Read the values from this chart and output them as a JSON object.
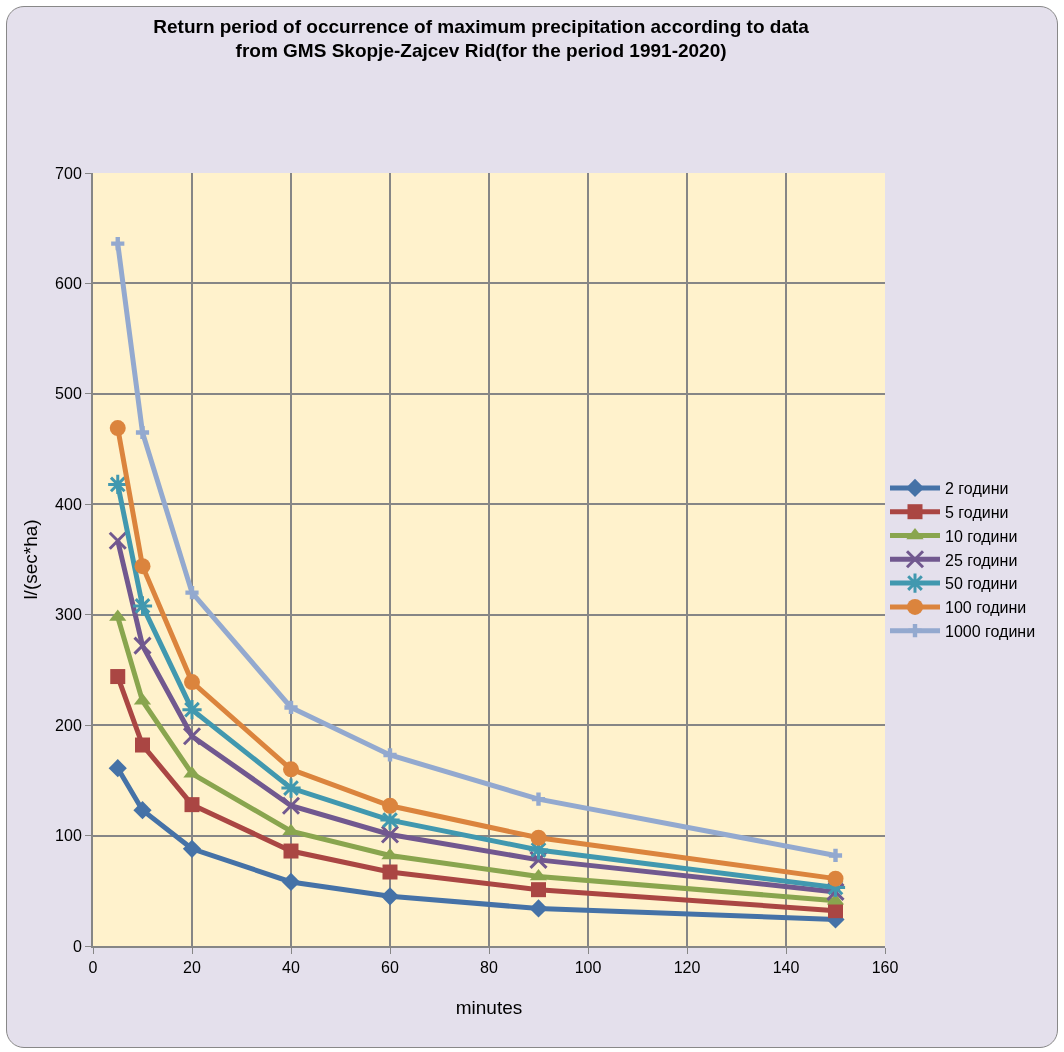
{
  "chart_data": {
    "type": "line",
    "title": "Return period of occurrence of maximum precipitation according to data\nfrom GMS Skopje-Zajcev Rid(for the period 1991-2020)",
    "xlabel": "minutes",
    "ylabel": "l/(sec*ha)",
    "x": [
      5,
      10,
      20,
      40,
      60,
      90,
      150
    ],
    "xlim": [
      0,
      160
    ],
    "xticks": [
      0,
      20,
      40,
      60,
      80,
      100,
      120,
      140,
      160
    ],
    "ylim": [
      0,
      700
    ],
    "yticks": [
      0,
      100,
      200,
      300,
      400,
      500,
      600,
      700
    ],
    "grid": true,
    "legend": "right",
    "line_style": "solid",
    "series": [
      {
        "name": "2 години",
        "color": "#4572a7",
        "marker": "diamond",
        "values": [
          161,
          123,
          88,
          58,
          45,
          34,
          24
        ]
      },
      {
        "name": "5 години",
        "color": "#aa4643",
        "marker": "square",
        "values": [
          244,
          182,
          128,
          86,
          67,
          51,
          32
        ]
      },
      {
        "name": "10 години",
        "color": "#89a54e",
        "marker": "triangle",
        "values": [
          298,
          222,
          156,
          104,
          82,
          63,
          41
        ]
      },
      {
        "name": "25 години",
        "color": "#71588f",
        "marker": "x",
        "values": [
          367,
          272,
          190,
          127,
          101,
          78,
          49
        ]
      },
      {
        "name": "50 години",
        "color": "#4198af",
        "marker": "cross",
        "values": [
          418,
          308,
          214,
          143,
          114,
          87,
          53
        ]
      },
      {
        "name": "100 години",
        "color": "#db843d",
        "marker": "circle",
        "values": [
          469,
          344,
          239,
          160,
          127,
          98,
          61
        ]
      },
      {
        "name": "1000 години",
        "color": "#93a9cf",
        "marker": "plus",
        "values": [
          636,
          465,
          320,
          216,
          173,
          133,
          82
        ]
      }
    ]
  }
}
